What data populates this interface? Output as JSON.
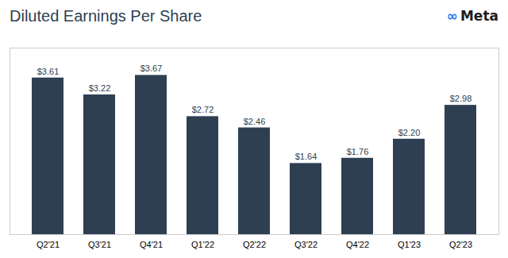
{
  "chart_data": {
    "type": "bar",
    "title": "Diluted Earnings Per Share",
    "categories": [
      "Q2'21",
      "Q3'21",
      "Q4'21",
      "Q1'22",
      "Q2'22",
      "Q3'22",
      "Q4'22",
      "Q1'23",
      "Q2'23"
    ],
    "values": [
      3.61,
      3.22,
      3.67,
      2.72,
      2.46,
      1.64,
      1.76,
      2.2,
      2.98
    ],
    "value_labels": [
      "$3.61",
      "$3.22",
      "$3.67",
      "$2.72",
      "$2.46",
      "$1.64",
      "$1.76",
      "$2.20",
      "$2.98"
    ],
    "color": "#2e3f52",
    "ylim": [
      0,
      4.3
    ],
    "grid": false,
    "data_labels": true,
    "tick_labels": "x",
    "annotations": [
      {
        "text": "∞",
        "color": "#1877F2"
      },
      {
        "text": "Meta",
        "color": "#1c1e21"
      }
    ]
  }
}
